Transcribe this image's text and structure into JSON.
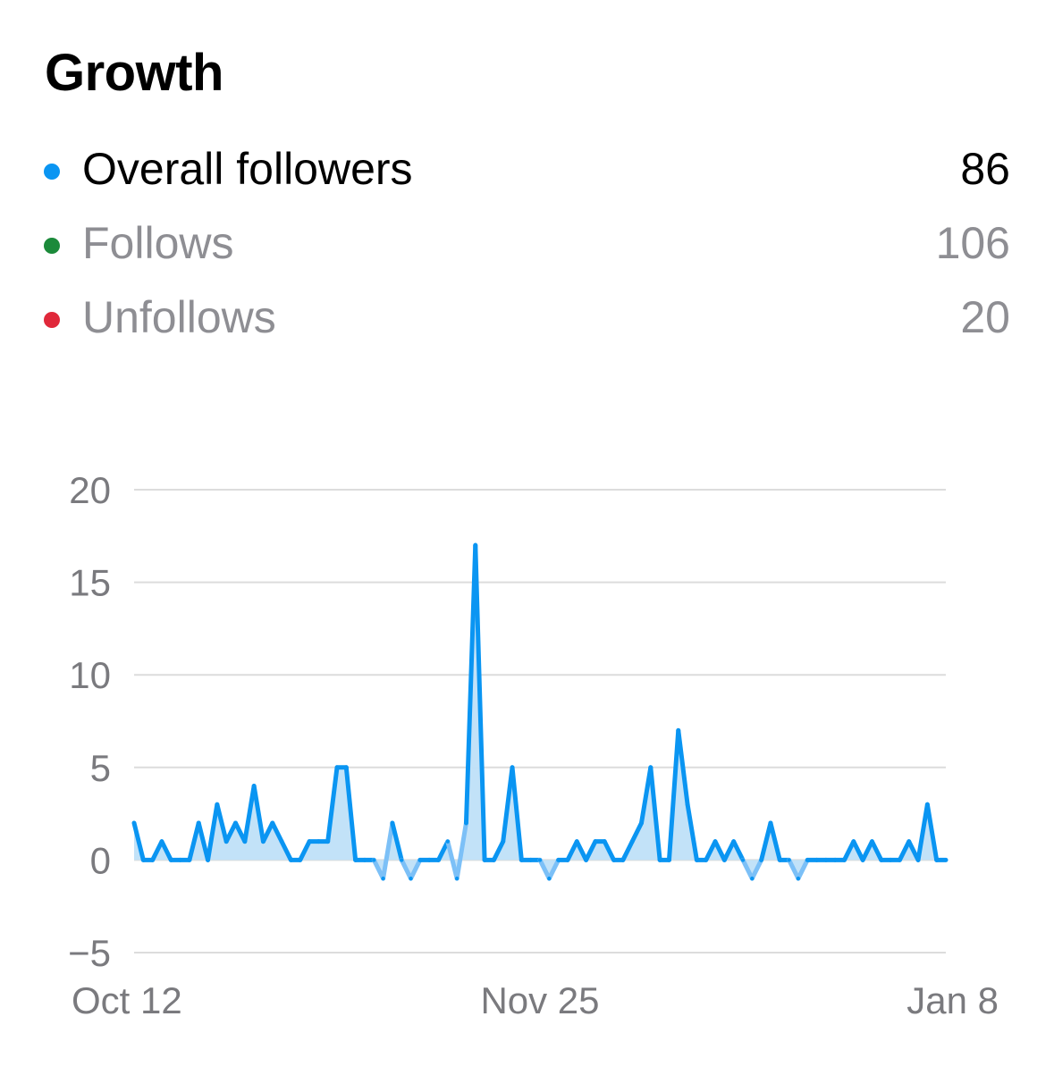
{
  "header": {
    "title": "Growth"
  },
  "legend": [
    {
      "label": "Overall followers",
      "value": "86",
      "color": "#0a95f2",
      "emphasis": true
    },
    {
      "label": "Follows",
      "value": "106",
      "color": "#1b8a3a",
      "emphasis": false
    },
    {
      "label": "Unfollows",
      "value": "20",
      "color": "#e0283a",
      "emphasis": false
    }
  ],
  "chart_data": {
    "type": "area",
    "title": "Growth",
    "xlabel": "",
    "ylabel": "",
    "ylim": [
      -5,
      20
    ],
    "yticks": [
      20,
      15,
      10,
      5,
      0,
      -5
    ],
    "xticks": [
      "Oct 12",
      "Nov 25",
      "Jan 8"
    ],
    "x_range": [
      "Oct 12",
      "Jan 8"
    ],
    "grid": true,
    "colors": {
      "line": "#0a95f2",
      "line_negative": "#7cc0f7",
      "fill": "#bfe0f8",
      "grid": "#dcdcdc"
    },
    "series": [
      {
        "name": "Overall followers",
        "values": [
          2,
          0,
          0,
          1,
          0,
          0,
          0,
          2,
          0,
          3,
          1,
          2,
          1,
          4,
          1,
          2,
          1,
          0,
          0,
          1,
          1,
          1,
          5,
          5,
          0,
          0,
          0,
          -1,
          2,
          0,
          -1,
          0,
          0,
          0,
          1,
          -1,
          2,
          17,
          0,
          0,
          1,
          5,
          0,
          0,
          0,
          -1,
          0,
          0,
          1,
          0,
          1,
          1,
          0,
          0,
          1,
          2,
          5,
          0,
          0,
          7,
          3,
          0,
          0,
          1,
          0,
          1,
          0,
          -1,
          0,
          2,
          0,
          0,
          -1,
          0,
          0,
          0,
          0,
          0,
          1,
          0,
          1,
          0,
          0,
          0,
          1,
          0,
          3,
          0,
          0
        ]
      }
    ]
  }
}
